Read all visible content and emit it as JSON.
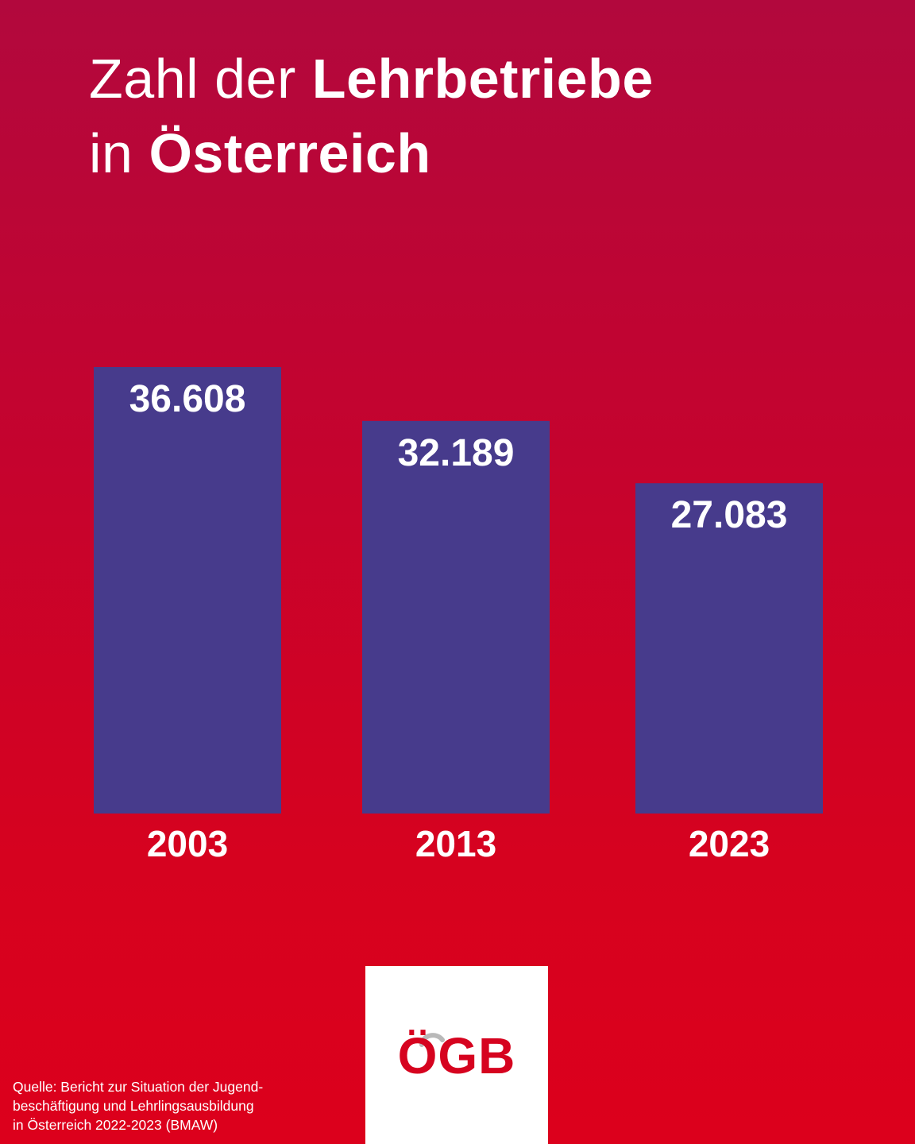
{
  "title": {
    "line1_normal": "Zahl der ",
    "line1_bold": "Lehrbetriebe",
    "line2_normal": "in ",
    "line2_bold": "Österreich"
  },
  "chart_data": {
    "type": "bar",
    "categories": [
      "2003",
      "2013",
      "2023"
    ],
    "values": [
      36608,
      32189,
      27083
    ],
    "value_labels": [
      "36.608",
      "32.189",
      "27.083"
    ],
    "title": "Zahl der Lehrbetriebe in Österreich",
    "xlabel": "",
    "ylabel": "",
    "ylim": [
      0,
      36608
    ],
    "grid": false,
    "legend": "none",
    "colors": {
      "bar": "#473b8c",
      "text": "#ffffff"
    }
  },
  "logo": {
    "text": "ÖGB",
    "color": "#d6031f",
    "background": "#ffffff"
  },
  "source": {
    "text": "Quelle: Bericht zur Situation der Jugend-\nbeschäftigung und Lehrlingsausbildung\nin Österreich 2022-2023 (BMAW)"
  },
  "colors": {
    "background_top": "#b2083d",
    "background_bottom": "#dc001c"
  }
}
